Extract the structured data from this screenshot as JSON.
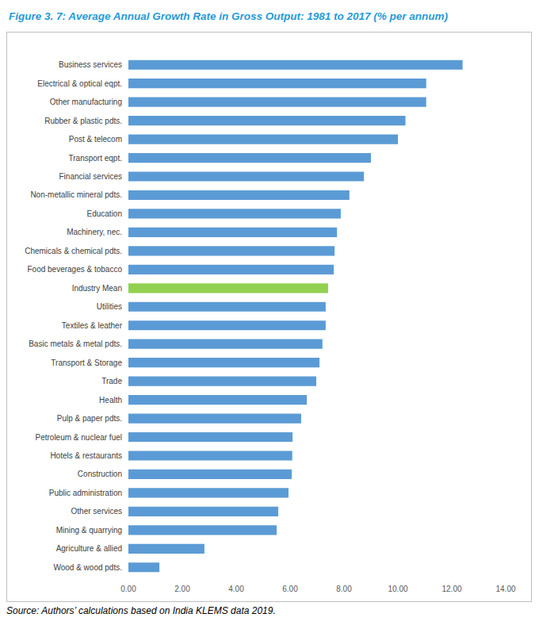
{
  "chart_data": {
    "type": "bar",
    "title": "Figure 3. 7: Average Annual Growth Rate in Gross Output: 1981 to 2017 (% per annum)",
    "source": "Source: Authors’ calculations based on India KLEMS data 2019.",
    "orientation": "horizontal",
    "categories": [
      "Business services",
      "Electrical & optical eqpt.",
      "Other manufacturing",
      "Rubber & plastic pdts.",
      "Post & telecom",
      "Transport eqpt.",
      "Financial services",
      "Non-metallic mineral pdts.",
      "Education",
      "Machinery, nec.",
      "Chemicals & chemical pdts.",
      "Food beverages & tobacco",
      "Industry Mean",
      "Utilities",
      "Textiles & leather",
      "Basic metals & metal pdts.",
      "Transport & Storage",
      "Trade",
      "Health",
      "Pulp & paper pdts.",
      "Petroleum & nuclear fuel",
      "Hotels & restaurants",
      "Construction",
      "Public administration",
      "Other services",
      "Mining & quarrying",
      "Agriculture & allied",
      "Wood & wood pdts."
    ],
    "values": [
      12.4,
      11.05,
      11.05,
      10.28,
      10.0,
      9.0,
      8.74,
      8.2,
      7.88,
      7.74,
      7.65,
      7.62,
      7.41,
      7.32,
      7.32,
      7.2,
      7.09,
      6.97,
      6.62,
      6.41,
      6.09,
      6.08,
      6.06,
      5.94,
      5.56,
      5.5,
      2.82,
      1.15
    ],
    "colors": [
      "#5b9bd5",
      "#5b9bd5",
      "#5b9bd5",
      "#5b9bd5",
      "#5b9bd5",
      "#5b9bd5",
      "#5b9bd5",
      "#5b9bd5",
      "#5b9bd5",
      "#5b9bd5",
      "#5b9bd5",
      "#5b9bd5",
      "#92d050",
      "#5b9bd5",
      "#5b9bd5",
      "#5b9bd5",
      "#5b9bd5",
      "#5b9bd5",
      "#5b9bd5",
      "#5b9bd5",
      "#5b9bd5",
      "#5b9bd5",
      "#5b9bd5",
      "#5b9bd5",
      "#5b9bd5",
      "#5b9bd5",
      "#5b9bd5",
      "#5b9bd5"
    ],
    "xlim": [
      0,
      14
    ],
    "xticks": [
      {
        "value": 0,
        "label": "0.00"
      },
      {
        "value": 2,
        "label": "2.00"
      },
      {
        "value": 4,
        "label": "4.00"
      },
      {
        "value": 6,
        "label": "6.00"
      },
      {
        "value": 8,
        "label": "8.00"
      },
      {
        "value": 10,
        "label": "10.00"
      },
      {
        "value": 12,
        "label": "12.00"
      },
      {
        "value": 14,
        "label": "14.00"
      }
    ],
    "grid": false
  }
}
